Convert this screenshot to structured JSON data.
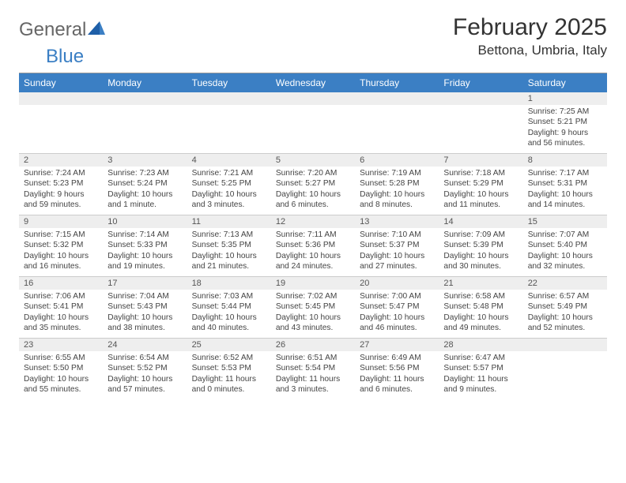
{
  "logo": {
    "general": "General",
    "blue": "Blue"
  },
  "header": {
    "month_title": "February 2025",
    "location": "Bettona, Umbria, Italy"
  },
  "colors": {
    "header_band": "#3b7fc4",
    "header_text": "#ffffff",
    "daynum_bg": "#eeeeee",
    "grid_border": "#cccccc",
    "body_text": "#444444",
    "title_text": "#333333"
  },
  "weekdays": [
    "Sunday",
    "Monday",
    "Tuesday",
    "Wednesday",
    "Thursday",
    "Friday",
    "Saturday"
  ],
  "weeks": [
    [
      {
        "empty": true
      },
      {
        "empty": true
      },
      {
        "empty": true
      },
      {
        "empty": true
      },
      {
        "empty": true
      },
      {
        "empty": true
      },
      {
        "n": "1",
        "sr": "Sunrise: 7:25 AM",
        "ss": "Sunset: 5:21 PM",
        "dl": "Daylight: 9 hours and 56 minutes."
      }
    ],
    [
      {
        "n": "2",
        "sr": "Sunrise: 7:24 AM",
        "ss": "Sunset: 5:23 PM",
        "dl": "Daylight: 9 hours and 59 minutes."
      },
      {
        "n": "3",
        "sr": "Sunrise: 7:23 AM",
        "ss": "Sunset: 5:24 PM",
        "dl": "Daylight: 10 hours and 1 minute."
      },
      {
        "n": "4",
        "sr": "Sunrise: 7:21 AM",
        "ss": "Sunset: 5:25 PM",
        "dl": "Daylight: 10 hours and 3 minutes."
      },
      {
        "n": "5",
        "sr": "Sunrise: 7:20 AM",
        "ss": "Sunset: 5:27 PM",
        "dl": "Daylight: 10 hours and 6 minutes."
      },
      {
        "n": "6",
        "sr": "Sunrise: 7:19 AM",
        "ss": "Sunset: 5:28 PM",
        "dl": "Daylight: 10 hours and 8 minutes."
      },
      {
        "n": "7",
        "sr": "Sunrise: 7:18 AM",
        "ss": "Sunset: 5:29 PM",
        "dl": "Daylight: 10 hours and 11 minutes."
      },
      {
        "n": "8",
        "sr": "Sunrise: 7:17 AM",
        "ss": "Sunset: 5:31 PM",
        "dl": "Daylight: 10 hours and 14 minutes."
      }
    ],
    [
      {
        "n": "9",
        "sr": "Sunrise: 7:15 AM",
        "ss": "Sunset: 5:32 PM",
        "dl": "Daylight: 10 hours and 16 minutes."
      },
      {
        "n": "10",
        "sr": "Sunrise: 7:14 AM",
        "ss": "Sunset: 5:33 PM",
        "dl": "Daylight: 10 hours and 19 minutes."
      },
      {
        "n": "11",
        "sr": "Sunrise: 7:13 AM",
        "ss": "Sunset: 5:35 PM",
        "dl": "Daylight: 10 hours and 21 minutes."
      },
      {
        "n": "12",
        "sr": "Sunrise: 7:11 AM",
        "ss": "Sunset: 5:36 PM",
        "dl": "Daylight: 10 hours and 24 minutes."
      },
      {
        "n": "13",
        "sr": "Sunrise: 7:10 AM",
        "ss": "Sunset: 5:37 PM",
        "dl": "Daylight: 10 hours and 27 minutes."
      },
      {
        "n": "14",
        "sr": "Sunrise: 7:09 AM",
        "ss": "Sunset: 5:39 PM",
        "dl": "Daylight: 10 hours and 30 minutes."
      },
      {
        "n": "15",
        "sr": "Sunrise: 7:07 AM",
        "ss": "Sunset: 5:40 PM",
        "dl": "Daylight: 10 hours and 32 minutes."
      }
    ],
    [
      {
        "n": "16",
        "sr": "Sunrise: 7:06 AM",
        "ss": "Sunset: 5:41 PM",
        "dl": "Daylight: 10 hours and 35 minutes."
      },
      {
        "n": "17",
        "sr": "Sunrise: 7:04 AM",
        "ss": "Sunset: 5:43 PM",
        "dl": "Daylight: 10 hours and 38 minutes."
      },
      {
        "n": "18",
        "sr": "Sunrise: 7:03 AM",
        "ss": "Sunset: 5:44 PM",
        "dl": "Daylight: 10 hours and 40 minutes."
      },
      {
        "n": "19",
        "sr": "Sunrise: 7:02 AM",
        "ss": "Sunset: 5:45 PM",
        "dl": "Daylight: 10 hours and 43 minutes."
      },
      {
        "n": "20",
        "sr": "Sunrise: 7:00 AM",
        "ss": "Sunset: 5:47 PM",
        "dl": "Daylight: 10 hours and 46 minutes."
      },
      {
        "n": "21",
        "sr": "Sunrise: 6:58 AM",
        "ss": "Sunset: 5:48 PM",
        "dl": "Daylight: 10 hours and 49 minutes."
      },
      {
        "n": "22",
        "sr": "Sunrise: 6:57 AM",
        "ss": "Sunset: 5:49 PM",
        "dl": "Daylight: 10 hours and 52 minutes."
      }
    ],
    [
      {
        "n": "23",
        "sr": "Sunrise: 6:55 AM",
        "ss": "Sunset: 5:50 PM",
        "dl": "Daylight: 10 hours and 55 minutes."
      },
      {
        "n": "24",
        "sr": "Sunrise: 6:54 AM",
        "ss": "Sunset: 5:52 PM",
        "dl": "Daylight: 10 hours and 57 minutes."
      },
      {
        "n": "25",
        "sr": "Sunrise: 6:52 AM",
        "ss": "Sunset: 5:53 PM",
        "dl": "Daylight: 11 hours and 0 minutes."
      },
      {
        "n": "26",
        "sr": "Sunrise: 6:51 AM",
        "ss": "Sunset: 5:54 PM",
        "dl": "Daylight: 11 hours and 3 minutes."
      },
      {
        "n": "27",
        "sr": "Sunrise: 6:49 AM",
        "ss": "Sunset: 5:56 PM",
        "dl": "Daylight: 11 hours and 6 minutes."
      },
      {
        "n": "28",
        "sr": "Sunrise: 6:47 AM",
        "ss": "Sunset: 5:57 PM",
        "dl": "Daylight: 11 hours and 9 minutes."
      },
      {
        "empty": true
      }
    ]
  ]
}
